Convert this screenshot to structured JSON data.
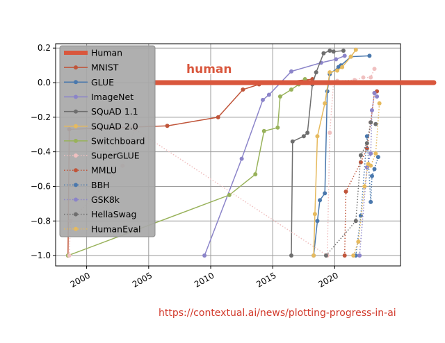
{
  "chart_data": {
    "type": "line",
    "title": "",
    "xlabel": "",
    "ylabel": "",
    "xlim": [
      1997.5,
      2025.3
    ],
    "ylim": [
      -1.06,
      0.225
    ],
    "x_ticks": [
      2000,
      2005,
      2010,
      2015,
      2020
    ],
    "y_ticks": [
      -1.0,
      -0.8,
      -0.6,
      -0.4,
      -0.2,
      0.0,
      0.2
    ],
    "grid": true,
    "legend_position": "upper-left",
    "human_baseline": {
      "name": "Human",
      "value": 0.0,
      "label": "human",
      "color": "#d9573d"
    },
    "series": [
      {
        "name": "MNIST",
        "color": "#c0553a",
        "style": "solid",
        "x": [
          1998.5,
          1998.6,
          2006.5,
          2010.6,
          2012.6,
          2013.9,
          2018.2
        ],
        "y": [
          -1.0,
          -0.27,
          -0.25,
          -0.2,
          -0.04,
          -0.01,
          0.02
        ]
      },
      {
        "name": "GLUE",
        "color": "#4a78ad",
        "style": "solid",
        "x": [
          2018.3,
          2018.6,
          2018.8,
          2019.2,
          2019.4,
          2019.6,
          2020.3,
          2020.5,
          2021.3,
          2022.8
        ],
        "y": [
          -1.0,
          -0.8,
          -0.68,
          -0.64,
          -0.05,
          0.05,
          0.09,
          0.1,
          0.15,
          0.155
        ]
      },
      {
        "name": "ImageNet",
        "color": "#8b84c9",
        "style": "solid",
        "x": [
          2009.5,
          2012.5,
          2014.2,
          2014.7,
          2016.5,
          2018.9,
          2020.1,
          2020.8
        ],
        "y": [
          -1.0,
          -0.44,
          -0.1,
          -0.07,
          0.065,
          0.115,
          0.135,
          0.155
        ]
      },
      {
        "name": "SQuAD 1.1",
        "color": "#6e6e6e",
        "style": "solid",
        "x": [
          2016.5,
          2016.6,
          2017.5,
          2017.8,
          2018.2,
          2018.5,
          2019.1,
          2019.6,
          2019.9,
          2020.7
        ],
        "y": [
          -1.0,
          -0.34,
          -0.31,
          -0.29,
          -0.01,
          0.06,
          0.17,
          0.185,
          0.18,
          0.185
        ]
      },
      {
        "name": "SQuAD 2.0",
        "color": "#e6ba5e",
        "style": "solid",
        "x": [
          2018.3,
          2018.4,
          2018.6,
          2019.2,
          2019.6,
          2020.2,
          2020.6,
          2021.3,
          2021.7
        ],
        "y": [
          -1.0,
          -0.76,
          -0.31,
          -0.12,
          0.06,
          0.07,
          0.09,
          0.15,
          0.19
        ]
      },
      {
        "name": "Switchboard",
        "color": "#98b25a",
        "style": "solid",
        "x": [
          1998.5,
          2011.5,
          2013.6,
          2014.3,
          2015.4,
          2015.6,
          2016.5,
          2017.1,
          2017.6
        ],
        "y": [
          -1.0,
          -0.65,
          -0.53,
          -0.28,
          -0.26,
          -0.08,
          -0.04,
          -0.01,
          0.02
        ]
      },
      {
        "name": "SuperGLUE",
        "color": "#f0c0c0",
        "style": "dotted",
        "x": [
          1998.6,
          1998.7,
          2002.9,
          2003.9,
          2019.4,
          2019.6,
          2019.9,
          2020.2,
          2021.6,
          2022.3,
          2022.9,
          2023.2
        ],
        "y": [
          -1.0,
          -0.8,
          -0.48,
          -0.27,
          -1.0,
          -0.29,
          -0.0,
          0.01,
          0.015,
          0.03,
          0.03,
          0.08
        ]
      },
      {
        "name": "MMLU",
        "color": "#c0553a",
        "style": "dotted",
        "x": [
          2020.8,
          2020.9,
          2022.1,
          2022.6,
          2022.9,
          2023.2,
          2023.4
        ],
        "y": [
          -1.0,
          -0.63,
          -0.46,
          -0.38,
          -0.23,
          -0.06,
          -0.05
        ]
      },
      {
        "name": "BBH",
        "color": "#4a78ad",
        "style": "dotted",
        "x": [
          2021.7,
          2022.1,
          2022.6,
          2022.9,
          2023.0,
          2023.2,
          2023.5
        ],
        "y": [
          -1.0,
          -0.77,
          -0.31,
          -0.69,
          -0.54,
          -0.5,
          -0.43
        ]
      },
      {
        "name": "GSK8k",
        "color": "#8b84c9",
        "style": "dotted",
        "x": [
          2022.0,
          2022.6,
          2022.9,
          2023.0,
          2023.2,
          2023.4
        ],
        "y": [
          -1.0,
          -0.49,
          -0.41,
          -0.16,
          -0.06,
          -0.08
        ]
      },
      {
        "name": "HellaSwag",
        "color": "#6e6e6e",
        "style": "dotted",
        "x": [
          2019.3,
          2021.7,
          2022.1,
          2022.6,
          2022.9,
          2023.3
        ],
        "y": [
          -1.0,
          -0.8,
          -0.42,
          -0.35,
          -0.23,
          -0.24
        ]
      },
      {
        "name": "HumanEval",
        "color": "#e6ba5e",
        "style": "dotted",
        "x": [
          2021.5,
          2021.9,
          2022.4,
          2022.7,
          2022.9,
          2023.3,
          2023.6
        ],
        "y": [
          -1.0,
          -0.92,
          -0.6,
          -0.47,
          -0.48,
          -0.41,
          -0.12
        ]
      }
    ]
  },
  "source_link": "https://contextual.ai/news/plotting-progress-in-ai"
}
